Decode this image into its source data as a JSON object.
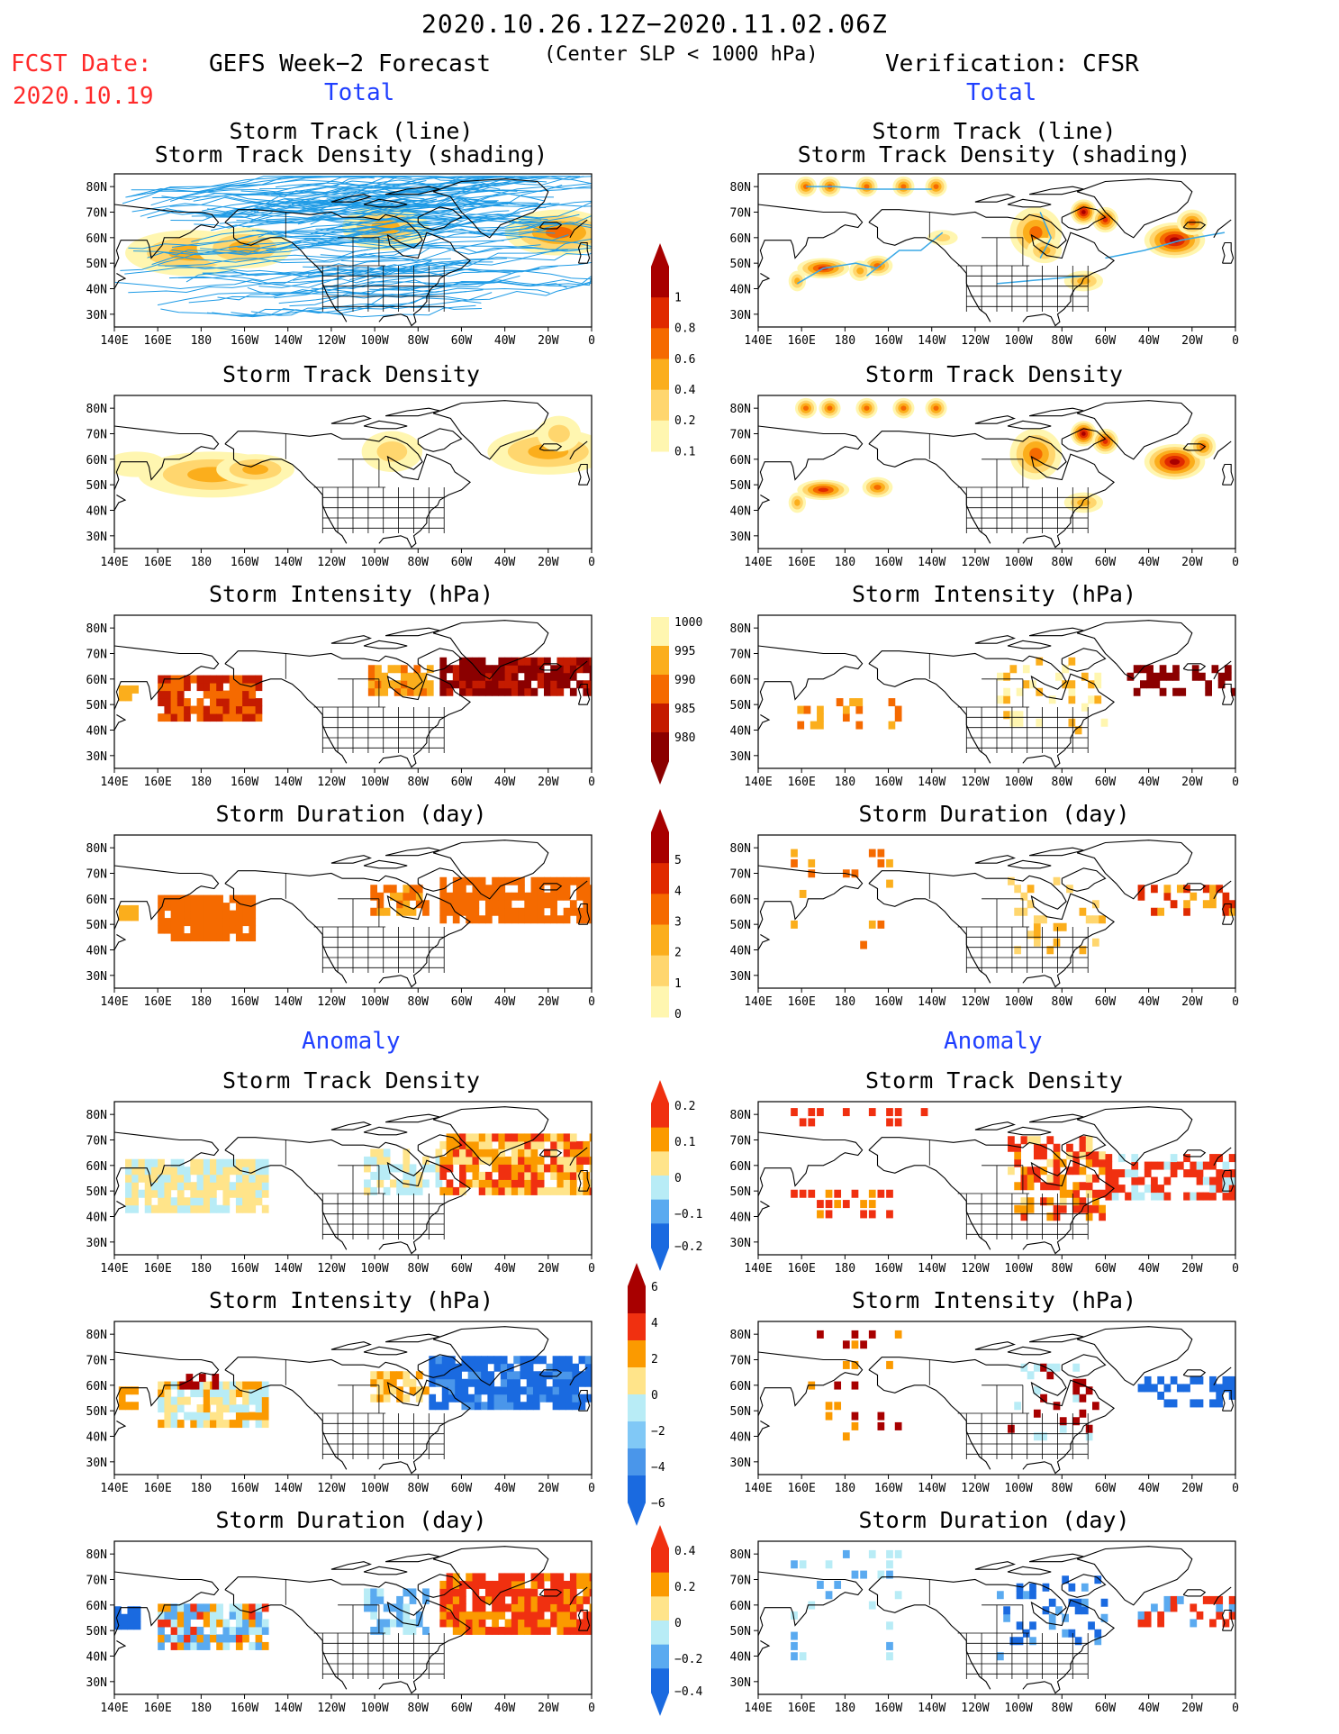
{
  "header": {
    "title": "2020.10.26.12Z−2020.11.02.06Z",
    "subtitle": "(Center SLP < 1000 hPa)",
    "fcst_label": "FCST Date:",
    "fcst_date": "2020.10.19",
    "left_title": "GEFS Week−2 Forecast",
    "right_title": "Verification: CFSR",
    "total_label": "Total",
    "anomaly_label": "Anomaly"
  },
  "axis": {
    "x_ticks": [
      "140E",
      "160E",
      "180",
      "160W",
      "140W",
      "120W",
      "100W",
      "80W",
      "60W",
      "40W",
      "20W",
      "0"
    ],
    "y_ticks": [
      "80N",
      "70N",
      "60N",
      "50N",
      "40N",
      "30N"
    ]
  },
  "panel_titles": {
    "track_line": "Storm Track (line)",
    "track_shading": "Storm Track Density (shading)",
    "density": "Storm Track Density",
    "intensity": "Storm Intensity (hPa)",
    "duration": "Storm Duration (day)"
  },
  "colorbars": {
    "density_total": {
      "labels": [
        "1",
        "0.8",
        "0.6",
        "0.4",
        "0.2",
        "0.1"
      ],
      "colors": [
        "#a80000",
        "#e02a00",
        "#f56a00",
        "#fbae1c",
        "#ffd66e",
        "#fff6b0"
      ]
    },
    "intensity_total": {
      "labels": [
        "1000",
        "995",
        "990",
        "985",
        "980"
      ],
      "colors": [
        "#fff6b0",
        "#fbae1c",
        "#f56a00",
        "#c41b00",
        "#8b0000"
      ]
    },
    "duration_total": {
      "labels": [
        "5",
        "4",
        "3",
        "2",
        "1",
        "0"
      ],
      "colors": [
        "#a80000",
        "#e02a00",
        "#f56a00",
        "#fbae1c",
        "#ffd66e",
        "#fff6b0"
      ]
    },
    "density_anom": {
      "labels": [
        "0.2",
        "0.1",
        "0",
        "−0.1",
        "−0.2"
      ],
      "colors": [
        "#f03010",
        "#fb9a00",
        "#ffe48a",
        "#b8ecf6",
        "#5aaaf0",
        "#1a6ae0"
      ]
    },
    "intensity_anom": {
      "labels": [
        "6",
        "4",
        "2",
        "0",
        "−2",
        "−4",
        "−6"
      ],
      "colors": [
        "#a80000",
        "#f03010",
        "#fb9a00",
        "#ffe48a",
        "#b8ecf6",
        "#80c8f6",
        "#4a96ea",
        "#1a6ae0"
      ]
    },
    "duration_anom": {
      "labels": [
        "0.4",
        "0.2",
        "0",
        "−0.2",
        "−0.4"
      ],
      "colors": [
        "#f03010",
        "#fb9a00",
        "#ffe48a",
        "#b8ecf6",
        "#5aaaf0",
        "#1a6ae0"
      ]
    }
  },
  "chart_data": [
    {
      "type": "heatmap",
      "title": "Storm Track (line) / Storm Track Density (shading)",
      "source": "GEFS Week−2 Forecast",
      "section": "Total",
      "field": "track_lines_density",
      "xlim": [
        "140E",
        "0"
      ],
      "ylim": [
        "25N",
        "85N"
      ]
    },
    {
      "type": "heatmap",
      "title": "Storm Track (line) / Storm Track Density (shading)",
      "source": "Verification: CFSR",
      "section": "Total",
      "field": "track_lines_density",
      "xlim": [
        "140E",
        "0"
      ],
      "ylim": [
        "25N",
        "85N"
      ]
    },
    {
      "type": "heatmap",
      "title": "Storm Track Density",
      "source": "GEFS Week−2 Forecast",
      "section": "Total",
      "field": "density",
      "xlim": [
        "140E",
        "0"
      ],
      "ylim": [
        "25N",
        "85N"
      ]
    },
    {
      "type": "heatmap",
      "title": "Storm Track Density",
      "source": "Verification: CFSR",
      "section": "Total",
      "field": "density",
      "xlim": [
        "140E",
        "0"
      ],
      "ylim": [
        "25N",
        "85N"
      ]
    },
    {
      "type": "heatmap",
      "title": "Storm Intensity (hPa)",
      "source": "GEFS Week−2 Forecast",
      "section": "Total",
      "field": "intensity",
      "xlim": [
        "140E",
        "0"
      ],
      "ylim": [
        "25N",
        "85N"
      ]
    },
    {
      "type": "heatmap",
      "title": "Storm Intensity (hPa)",
      "source": "Verification: CFSR",
      "section": "Total",
      "field": "intensity",
      "xlim": [
        "140E",
        "0"
      ],
      "ylim": [
        "25N",
        "85N"
      ]
    },
    {
      "type": "heatmap",
      "title": "Storm Duration (day)",
      "source": "GEFS Week−2 Forecast",
      "section": "Total",
      "field": "duration",
      "xlim": [
        "140E",
        "0"
      ],
      "ylim": [
        "25N",
        "85N"
      ]
    },
    {
      "type": "heatmap",
      "title": "Storm Duration (day)",
      "source": "Verification: CFSR",
      "section": "Total",
      "field": "duration",
      "xlim": [
        "140E",
        "0"
      ],
      "ylim": [
        "25N",
        "85N"
      ]
    },
    {
      "type": "heatmap",
      "title": "Storm Track Density",
      "source": "GEFS Week−2 Forecast",
      "section": "Anomaly",
      "field": "density_anom",
      "xlim": [
        "140E",
        "0"
      ],
      "ylim": [
        "25N",
        "85N"
      ]
    },
    {
      "type": "heatmap",
      "title": "Storm Track Density",
      "source": "Verification: CFSR",
      "section": "Anomaly",
      "field": "density_anom",
      "xlim": [
        "140E",
        "0"
      ],
      "ylim": [
        "25N",
        "85N"
      ]
    },
    {
      "type": "heatmap",
      "title": "Storm Intensity (hPa)",
      "source": "GEFS Week−2 Forecast",
      "section": "Anomaly",
      "field": "intensity_anom",
      "xlim": [
        "140E",
        "0"
      ],
      "ylim": [
        "25N",
        "85N"
      ]
    },
    {
      "type": "heatmap",
      "title": "Storm Intensity (hPa)",
      "source": "Verification: CFSR",
      "section": "Anomaly",
      "field": "intensity_anom",
      "xlim": [
        "140E",
        "0"
      ],
      "ylim": [
        "25N",
        "85N"
      ]
    },
    {
      "type": "heatmap",
      "title": "Storm Duration (day)",
      "source": "GEFS Week−2 Forecast",
      "section": "Anomaly",
      "field": "duration_anom",
      "xlim": [
        "140E",
        "0"
      ],
      "ylim": [
        "25N",
        "85N"
      ]
    },
    {
      "type": "heatmap",
      "title": "Storm Duration (day)",
      "source": "Verification: CFSR",
      "section": "Anomaly",
      "field": "duration_anom",
      "xlim": [
        "140E",
        "0"
      ],
      "ylim": [
        "25N",
        "85N"
      ]
    }
  ]
}
